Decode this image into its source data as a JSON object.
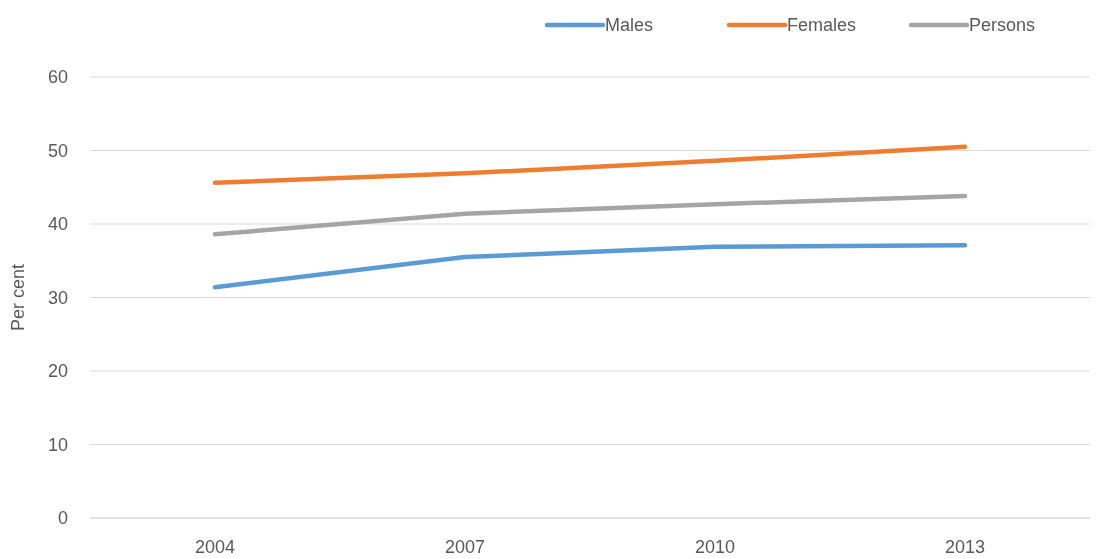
{
  "chart_data": {
    "type": "line",
    "ylabel": "Per cent",
    "categories": [
      "2004",
      "2007",
      "2010",
      "2013"
    ],
    "series": [
      {
        "name": "Males",
        "color": "#5b9bd5",
        "values": [
          31.4,
          35.5,
          36.9,
          37.1
        ]
      },
      {
        "name": "Females",
        "color": "#ed7d31",
        "values": [
          45.6,
          46.9,
          48.6,
          50.5
        ]
      },
      {
        "name": "Persons",
        "color": "#a5a5a5",
        "values": [
          38.6,
          41.4,
          42.7,
          43.8
        ]
      }
    ],
    "ylim": [
      0,
      60
    ],
    "yticks": [
      0,
      10,
      20,
      30,
      40,
      50,
      60
    ],
    "grid": "y",
    "legend": "top right",
    "marker": "none",
    "line_style": "solid"
  }
}
